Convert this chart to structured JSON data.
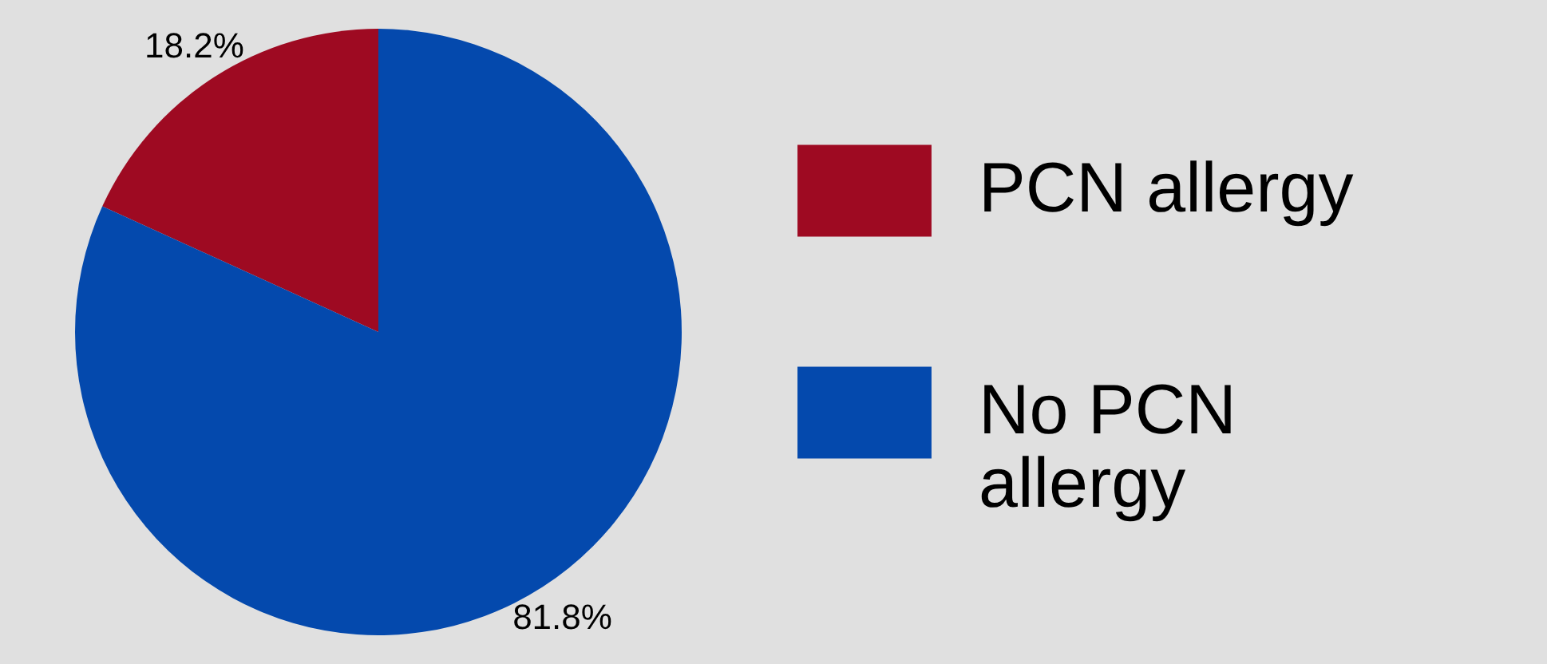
{
  "chart_data": {
    "type": "pie",
    "categories": [
      "PCN allergy",
      "No PCN allergy"
    ],
    "values": [
      18.2,
      81.8
    ],
    "colors": [
      "#9e0a22",
      "#0449ad"
    ],
    "value_labels": [
      "18.2%",
      "81.8%"
    ],
    "legend": "right"
  }
}
